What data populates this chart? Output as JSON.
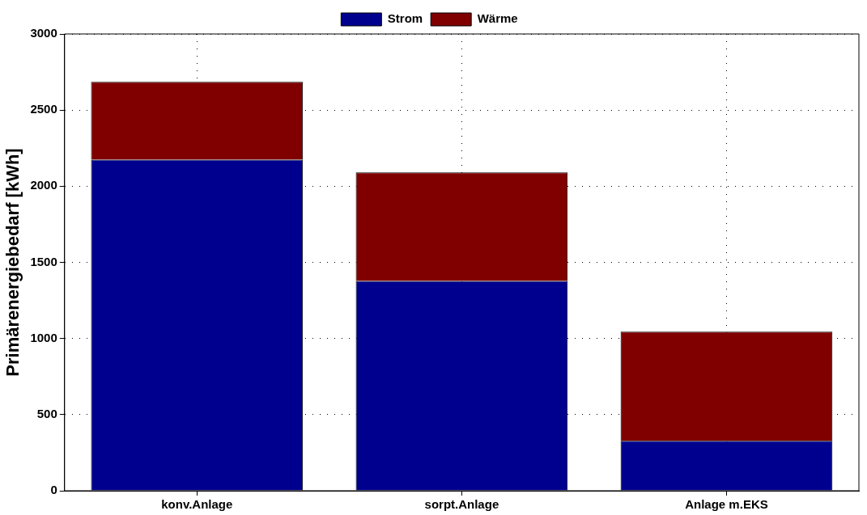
{
  "chart_data": {
    "type": "bar",
    "ylabel": "Primärenergiebedarf [kWh]",
    "categories": [
      "konv.Anlage",
      "sorpt.Anlage",
      "Anlage m.EKS"
    ],
    "stacked": true,
    "series": [
      {
        "name": "Strom",
        "color": "#00008f",
        "values": [
          2174,
          1378,
          328
        ]
      },
      {
        "name": "Wärme",
        "color": "#800000",
        "values": [
          512,
          713,
          717
        ]
      }
    ],
    "ylim": [
      0,
      3000
    ],
    "yticks": [
      0,
      500,
      1000,
      1500,
      2000,
      2500,
      3000
    ],
    "grid": true,
    "legend": "top"
  }
}
